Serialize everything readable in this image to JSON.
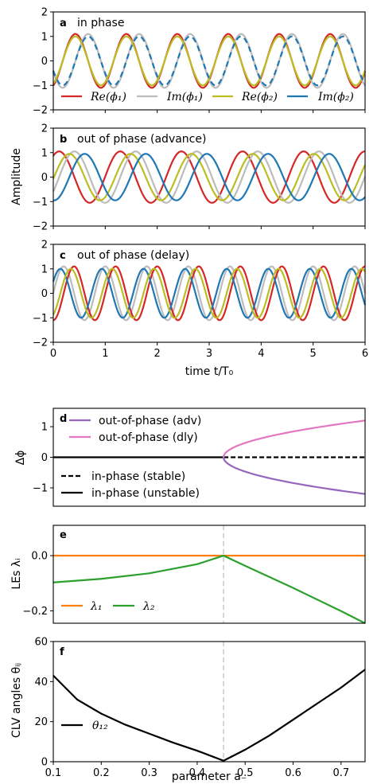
{
  "chart_data": [
    {
      "panel": "a",
      "type": "line",
      "title": "in phase",
      "x_range": [
        0,
        6
      ],
      "ylim": [
        -2,
        2
      ],
      "x_ticks": [
        "0",
        "1",
        "2",
        "3",
        "4",
        "5",
        "6"
      ],
      "y_ticks": [
        "2",
        "1",
        "0",
        "−1",
        "−2"
      ],
      "series": [
        {
          "name": "Re(ϕ₁)",
          "color": "#d62728",
          "amplitude": 1.1,
          "frequency": 1.02,
          "phase": -1.16
        },
        {
          "name": "Im(ϕ₁)",
          "color": "#bcbcbc",
          "amplitude": 1.1,
          "frequency": 1.02,
          "phase": -2.73
        },
        {
          "name": "Re(ϕ₂)",
          "color": "#bcbd22",
          "amplitude": 1.0,
          "frequency": 1.02,
          "phase": -1.16
        },
        {
          "name": "Im(ϕ₂)",
          "color": "#1f77b4",
          "amplitude": 1.0,
          "frequency": 1.02,
          "phase": -2.73
        }
      ],
      "legend_placement": "bottom"
    },
    {
      "panel": "b",
      "type": "line",
      "title": "out of phase (advance)",
      "ylabel": "Amplitude",
      "x_range": [
        0,
        6
      ],
      "ylim": [
        -2,
        2
      ],
      "x_ticks": [
        "0",
        "1",
        "2",
        "3",
        "4",
        "5",
        "6"
      ],
      "y_ticks": [
        "2",
        "1",
        "0",
        "−1",
        "−2"
      ],
      "series": [
        {
          "color": "#d62728",
          "amplitude": 1.05,
          "frequency": 0.85,
          "phase": 0.97
        },
        {
          "color": "#bcbcbc",
          "amplitude": 1.05,
          "frequency": 0.85,
          "phase": -0.6
        },
        {
          "color": "#bcbd22",
          "amplitude": 0.95,
          "frequency": 0.85,
          "phase": -0.08
        },
        {
          "color": "#1f77b4",
          "amplitude": 0.95,
          "frequency": 0.85,
          "phase": -1.65
        }
      ]
    },
    {
      "panel": "c",
      "type": "line",
      "title": "out of phase (delay)",
      "xlabel": "time t/T₀",
      "x_range": [
        0,
        6
      ],
      "ylim": [
        -2,
        2
      ],
      "x_ticks": [
        "0",
        "1",
        "2",
        "3",
        "4",
        "5",
        "6"
      ],
      "y_ticks": [
        "2",
        "1",
        "0",
        "−1",
        "−2"
      ],
      "series": [
        {
          "color": "#bcbcbc",
          "amplitude": 1.1,
          "frequency": 1.25,
          "phase": 0.0
        },
        {
          "color": "#d62728",
          "amplitude": 1.1,
          "frequency": 1.25,
          "phase": -1.57
        },
        {
          "color": "#1f77b4",
          "amplitude": 1.0,
          "frequency": 1.25,
          "phase": 0.5
        },
        {
          "color": "#bcbd22",
          "amplitude": 1.0,
          "frequency": 1.25,
          "phase": -1.07
        }
      ]
    },
    {
      "panel": "d",
      "type": "line",
      "ylabel": "Δϕ",
      "x_range": [
        0.1,
        0.75
      ],
      "ylim": [
        -1.6,
        1.6
      ],
      "y_ticks": [
        "1",
        "0",
        "−1"
      ],
      "bifurcation_a": 0.455,
      "series": [
        {
          "name": "out-of-phase (adv)",
          "color": "#9467bd",
          "style": "solid",
          "branch": "lower",
          "x_start": 0.455,
          "x_end": 0.75,
          "y_end": -1.2
        },
        {
          "name": "out-of-phase (dly)",
          "color": "#e377c2",
          "style": "solid",
          "branch": "upper",
          "x_start": 0.455,
          "x_end": 0.75,
          "y_end": 1.2
        },
        {
          "name": "in-phase (stable)",
          "color": "#000000",
          "style": "dashed",
          "x_start": 0.455,
          "x_end": 0.75,
          "y": 0
        },
        {
          "name": "in-phase (unstable)",
          "color": "#000000",
          "style": "solid",
          "x_start": 0.1,
          "x_end": 0.455,
          "y": 0
        }
      ]
    },
    {
      "panel": "e",
      "type": "line",
      "ylabel": "LEs λᵢ",
      "x_range": [
        0.1,
        0.75
      ],
      "ylim": [
        -0.245,
        0.11
      ],
      "y_ticks": [
        "0.0",
        "−0.2"
      ],
      "vline_a": 0.455,
      "series": [
        {
          "name": "λ₁",
          "color": "#ff7f0e",
          "x": [
            0.1,
            0.75
          ],
          "y": [
            0.0,
            0.0
          ]
        },
        {
          "name": "λ₂",
          "color": "#2ca02c",
          "x": [
            0.1,
            0.2,
            0.3,
            0.4,
            0.455,
            0.5,
            0.6,
            0.7,
            0.75
          ],
          "y": [
            -0.097,
            -0.084,
            -0.064,
            -0.031,
            0.0,
            -0.037,
            -0.117,
            -0.201,
            -0.245
          ]
        }
      ],
      "legend_placement": "bottom-left"
    },
    {
      "panel": "f",
      "type": "line",
      "ylabel": "CLV angles θᵢⱼ",
      "xlabel": "parameter a₋",
      "x_range": [
        0.1,
        0.75
      ],
      "ylim": [
        0,
        60
      ],
      "x_ticks": [
        "0.1",
        "0.2",
        "0.3",
        "0.4",
        "0.5",
        "0.6",
        "0.7"
      ],
      "y_ticks": [
        "60",
        "40",
        "20",
        "0"
      ],
      "vline_a": 0.455,
      "series": [
        {
          "name": "θ₁₂",
          "color": "#000000",
          "x": [
            0.1,
            0.15,
            0.2,
            0.25,
            0.3,
            0.35,
            0.4,
            0.455,
            0.5,
            0.55,
            0.6,
            0.65,
            0.7,
            0.75
          ],
          "y": [
            43,
            31,
            24,
            18.5,
            14,
            9.5,
            5.5,
            0.5,
            6,
            13,
            21,
            29,
            37,
            46
          ]
        }
      ],
      "legend_placement": "bottom-left"
    }
  ],
  "labels": {
    "a_tag": "a",
    "a_title": "in phase",
    "b_tag": "b",
    "b_title": "out of phase (advance)",
    "c_tag": "c",
    "c_title": "out of phase (delay)",
    "d_tag": "d",
    "e_tag": "e",
    "f_tag": "f",
    "amplitude": "Amplitude",
    "time_label": "time t/T₀",
    "dphi": "Δϕ",
    "les": "LEs λᵢ",
    "clv": "CLV angles θᵢⱼ",
    "param": "parameter a₋",
    "leg_a": [
      "Re(ϕ₁)",
      "Im(ϕ₁)",
      "Re(ϕ₂)",
      "Im(ϕ₂)"
    ],
    "leg_d": [
      "out-of-phase (adv)",
      "out-of-phase (dly)",
      "in-phase (stable)",
      "in-phase (unstable)"
    ],
    "leg_e": [
      "λ₁",
      "λ₂"
    ],
    "leg_f": [
      "θ₁₂"
    ]
  }
}
